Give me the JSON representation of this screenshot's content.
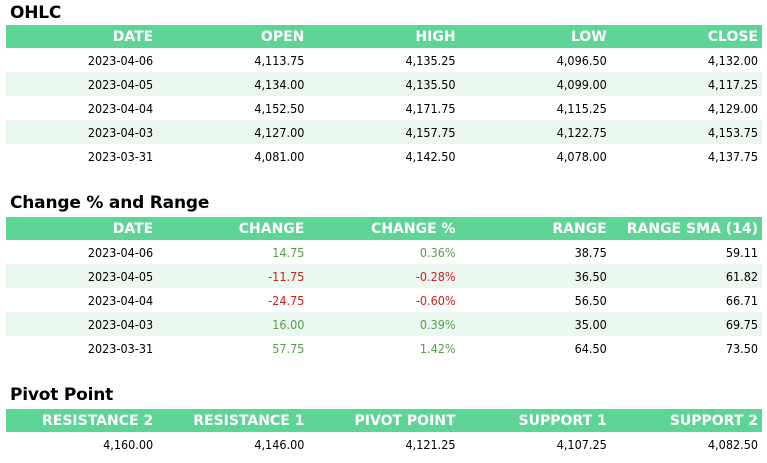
{
  "ohlc": {
    "title": "OHLC",
    "headers": [
      "DATE",
      "OPEN",
      "HIGH",
      "LOW",
      "CLOSE"
    ],
    "rows": [
      [
        "2023-04-06",
        "4,113.75",
        "4,135.25",
        "4,096.50",
        "4,132.00"
      ],
      [
        "2023-04-05",
        "4,134.00",
        "4,135.50",
        "4,099.00",
        "4,117.25"
      ],
      [
        "2023-04-04",
        "4,152.50",
        "4,171.75",
        "4,115.25",
        "4,129.00"
      ],
      [
        "2023-04-03",
        "4,127.00",
        "4,157.75",
        "4,122.75",
        "4,153.75"
      ],
      [
        "2023-03-31",
        "4,081.00",
        "4,142.50",
        "4,078.00",
        "4,137.75"
      ]
    ]
  },
  "change": {
    "title": "Change % and Range",
    "headers": [
      "DATE",
      "CHANGE",
      "CHANGE %",
      "RANGE",
      "RANGE SMA (14)"
    ],
    "rows": [
      [
        "2023-04-06",
        "14.75",
        "0.36%",
        "38.75",
        "59.11"
      ],
      [
        "2023-04-05",
        "-11.75",
        "-0.28%",
        "36.50",
        "61.82"
      ],
      [
        "2023-04-04",
        "-24.75",
        "-0.60%",
        "56.50",
        "66.71"
      ],
      [
        "2023-04-03",
        "16.00",
        "0.39%",
        "35.00",
        "69.75"
      ],
      [
        "2023-03-31",
        "57.75",
        "1.42%",
        "64.50",
        "73.50"
      ]
    ],
    "colors": {
      "positive": "#5a9e4a",
      "negative": "#cc1f1f"
    }
  },
  "pivot": {
    "title": "Pivot Point",
    "headers": [
      "RESISTANCE 2",
      "RESISTANCE 1",
      "PIVOT POINT",
      "SUPPORT 1",
      "SUPPORT 2"
    ],
    "rows": [
      [
        "4,160.00",
        "4,146.00",
        "4,121.25",
        "4,107.25",
        "4,082.50"
      ]
    ]
  },
  "colors": {
    "header_bg": "#5fd497",
    "alt_row_bg": "#eaf8ef"
  }
}
